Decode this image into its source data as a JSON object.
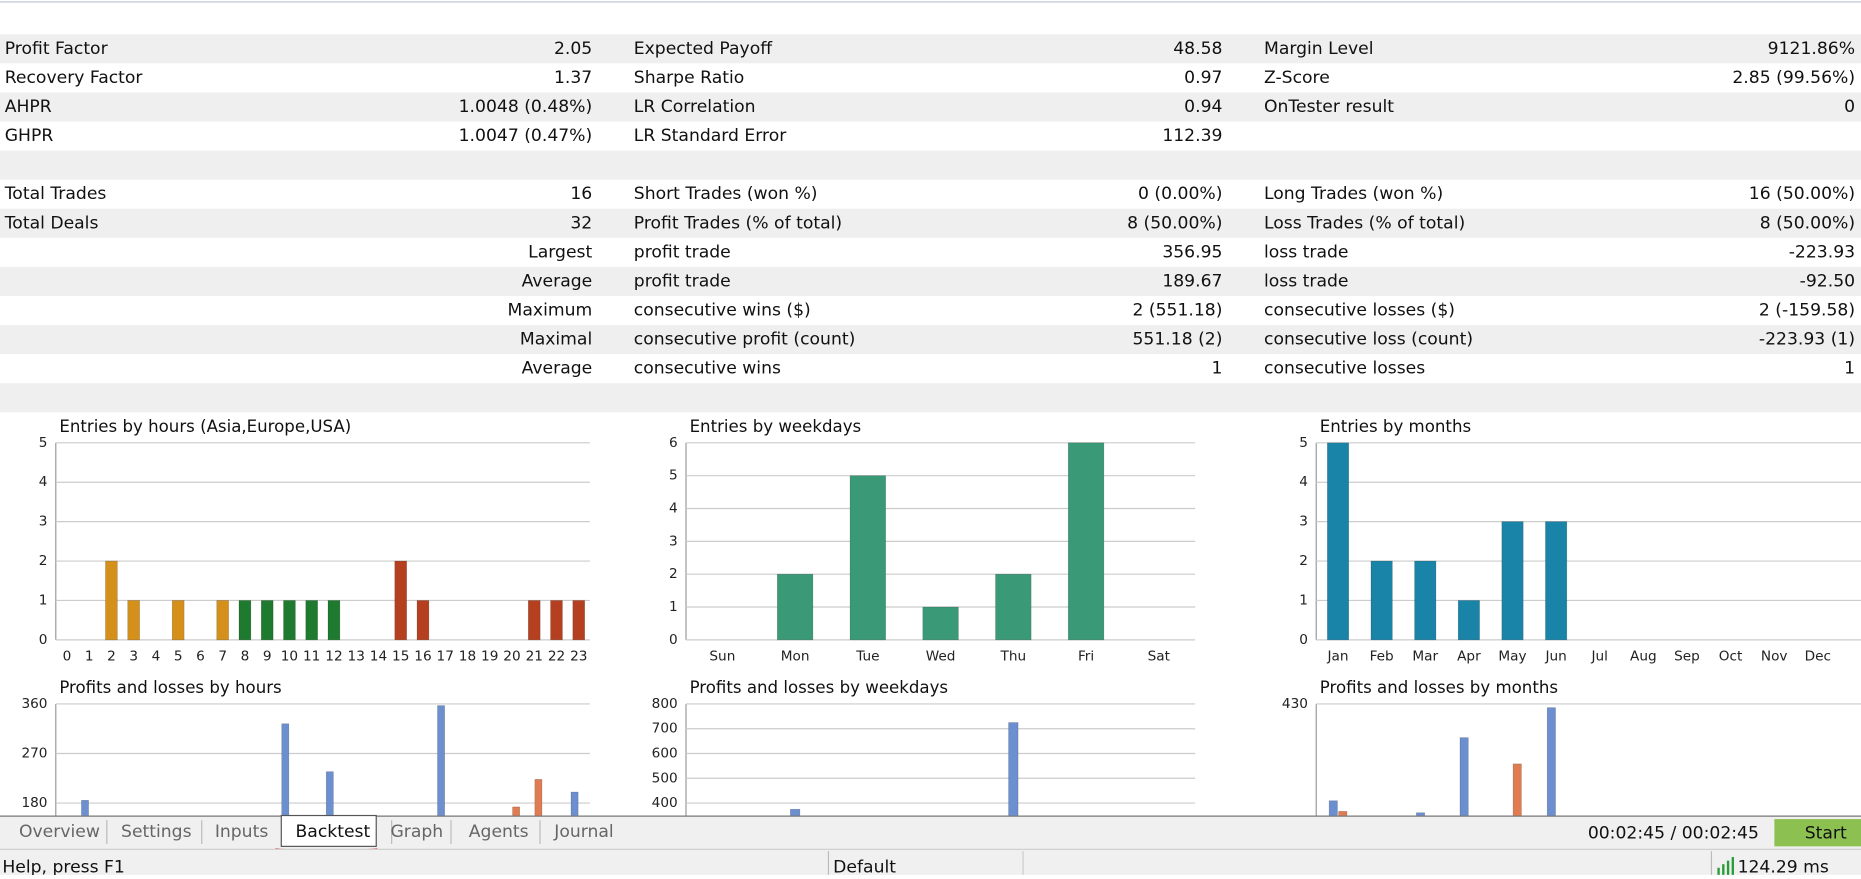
{
  "stats": {
    "summary": [
      [
        "Profit Factor",
        "2.05",
        "Expected Payoff",
        "48.58",
        "Margin Level",
        "9121.86%"
      ],
      [
        "Recovery Factor",
        "1.37",
        "Sharpe Ratio",
        "0.97",
        "Z-Score",
        "2.85 (99.56%)"
      ],
      [
        "AHPR",
        "1.0048 (0.48%)",
        "LR Correlation",
        "0.94",
        "OnTester result",
        "0"
      ],
      [
        "GHPR",
        "1.0047 (0.47%)",
        "LR Standard Error",
        "112.39"
      ]
    ],
    "trades": [
      [
        "Total Trades",
        "16",
        "Short Trades (won %)",
        "0 (0.00%)",
        "Long Trades (won %)",
        "16 (50.00%)"
      ],
      [
        "Total Deals",
        "32",
        "Profit Trades (% of total)",
        "8 (50.00%)",
        "Loss Trades (% of total)",
        "8 (50.00%)"
      ],
      [
        "Largest",
        "profit trade",
        "356.95",
        "loss trade",
        "-223.93"
      ],
      [
        "Average",
        "profit trade",
        "189.67",
        "loss trade",
        "-92.50"
      ],
      [
        "Maximum",
        "consecutive wins ($)",
        "2 (551.18)",
        "consecutive losses ($)",
        "2 (-159.58)"
      ],
      [
        "Maximal",
        "consecutive profit (count)",
        "551.18 (2)",
        "consecutive loss (count)",
        "-223.93 (1)"
      ],
      [
        "Average",
        "consecutive wins",
        "1",
        "consecutive losses",
        "1"
      ]
    ]
  },
  "chart_data": [
    {
      "type": "bar",
      "title": "Entries by hours (Asia,Europe,USA)",
      "categories": [
        "0",
        "1",
        "2",
        "3",
        "4",
        "5",
        "6",
        "7",
        "8",
        "9",
        "10",
        "11",
        "12",
        "13",
        "14",
        "15",
        "16",
        "17",
        "18",
        "19",
        "20",
        "21",
        "22",
        "23"
      ],
      "series": [
        {
          "values": [
            0,
            0,
            2,
            1,
            0,
            1,
            0,
            1,
            1,
            1,
            1,
            1,
            1,
            0,
            0,
            2,
            1,
            0,
            0,
            0,
            0,
            1,
            1,
            1
          ],
          "colors": [
            "#d4901a",
            "#d4901a",
            "#d4901a",
            "#d4901a",
            "#d4901a",
            "#d4901a",
            "#d4901a",
            "#d4901a",
            "#1e7a2e",
            "#1e7a2e",
            "#1e7a2e",
            "#1e7a2e",
            "#1e7a2e",
            "#1e7a2e",
            "#b5401f",
            "#b5401f",
            "#b5401f",
            "#b5401f",
            "#b5401f",
            "#b5401f",
            "#b5401f",
            "#b5401f",
            "#b5401f",
            "#b5401f"
          ]
        }
      ],
      "ylim": [
        0,
        5
      ],
      "yticks": [
        0,
        1,
        2,
        3,
        4,
        5
      ],
      "grid": true
    },
    {
      "type": "bar",
      "title": "Entries by weekdays",
      "categories": [
        "Sun",
        "Mon",
        "Tue",
        "Wed",
        "Thu",
        "Fri",
        "Sat"
      ],
      "series": [
        {
          "color": "#3a9a77",
          "values": [
            0,
            2,
            5,
            1,
            2,
            6,
            0
          ]
        }
      ],
      "ylim": [
        0,
        6
      ],
      "yticks": [
        0,
        1,
        2,
        3,
        4,
        5,
        6
      ],
      "grid": true
    },
    {
      "type": "bar",
      "title": "Entries by months",
      "categories": [
        "Jan",
        "Feb",
        "Mar",
        "Apr",
        "May",
        "Jun",
        "Jul",
        "Aug",
        "Sep",
        "Oct",
        "Nov",
        "Dec"
      ],
      "series": [
        {
          "color": "#1a84a8",
          "values": [
            5,
            2,
            2,
            1,
            3,
            3,
            0,
            0,
            0,
            0,
            0,
            0
          ]
        }
      ],
      "ylim": [
        0,
        5
      ],
      "yticks": [
        0,
        1,
        2,
        3,
        4,
        5
      ],
      "grid": true
    },
    {
      "type": "bar",
      "title": "Profits and losses by hours",
      "series": [
        {
          "color": "#6c8fd0",
          "values": [
            0,
            185,
            0,
            0,
            0,
            0,
            0,
            0,
            0,
            0,
            324,
            0,
            237,
            0,
            0,
            0,
            0,
            357,
            0,
            0,
            0,
            0,
            0,
            200
          ]
        },
        {
          "color": "#e07b52",
          "values": [
            0,
            0,
            0,
            0,
            0,
            0,
            0,
            0,
            0,
            0,
            0,
            0,
            0,
            0,
            0,
            0,
            0,
            0,
            0,
            0,
            173,
            223,
            0,
            0
          ]
        }
      ],
      "ylim": [
        0,
        360
      ],
      "yticks": [
        180,
        270,
        360
      ],
      "grid": true
    },
    {
      "type": "bar",
      "title": "Profits and losses by weekdays",
      "series": [
        {
          "color": "#6c8fd0",
          "values": [
            0,
            375,
            0,
            0,
            725,
            0,
            0
          ]
        }
      ],
      "ylim": [
        0,
        800
      ],
      "yticks": [
        400,
        500,
        600,
        700,
        800
      ],
      "grid": true
    },
    {
      "type": "bar",
      "title": "Profits and losses by months",
      "series": [
        {
          "color": "#6c8fd0",
          "values": [
            220,
            0,
            194,
            357,
            0,
            422,
            0,
            0,
            0,
            0,
            0,
            0
          ]
        },
        {
          "color": "#e07b52",
          "values": [
            197,
            0,
            0,
            0,
            300,
            0,
            0,
            0,
            0,
            0,
            0,
            0
          ]
        }
      ],
      "ylim": [
        0,
        430
      ],
      "yticks": [
        430
      ],
      "grid": true
    }
  ],
  "tabs": [
    "Overview",
    "Settings",
    "Inputs",
    "Backtest",
    "Graph",
    "Agents",
    "Journal"
  ],
  "active_tab": 3,
  "timer": "00:02:45 / 00:02:45",
  "start_button": "Start",
  "status": {
    "help": "Help, press F1",
    "profile": "Default",
    "ping": "124.29 ms"
  }
}
